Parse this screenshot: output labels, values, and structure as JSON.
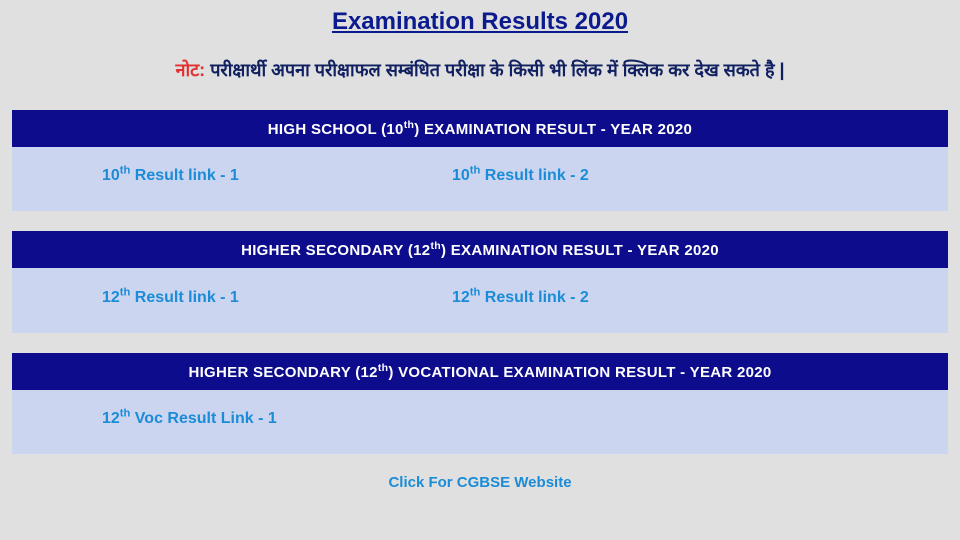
{
  "page_title": "Examination Results 2020",
  "note": {
    "label": "नोट:",
    "text": "परीक्षार्थी अपना परीक्षाफल सम्बंधित परीक्षा के किसी भी लिंक में क्लिक कर देख सकते है |"
  },
  "sections": [
    {
      "header_prefix": "HIGH SCHOOL (10",
      "header_suffix": ") EXAMINATION RESULT - YEAR 2020",
      "links": [
        {
          "prefix": "10",
          "suffix": " Result link - 1"
        },
        {
          "prefix": "10",
          "suffix": " Result link - 2"
        }
      ]
    },
    {
      "header_prefix": "HIGHER SECONDARY (12",
      "header_suffix": ") EXAMINATION RESULT - YEAR 2020",
      "links": [
        {
          "prefix": "12",
          "suffix": " Result link - 1"
        },
        {
          "prefix": "12",
          "suffix": " Result link - 2"
        }
      ]
    },
    {
      "header_prefix": "HIGHER SECONDARY (12",
      "header_suffix": ") VOCATIONAL  EXAMINATION RESULT - YEAR 2020",
      "links": [
        {
          "prefix": "12",
          "suffix": " Voc Result Link - 1"
        }
      ]
    }
  ],
  "footer_link": "Click For CGBSE Website",
  "th": "th"
}
